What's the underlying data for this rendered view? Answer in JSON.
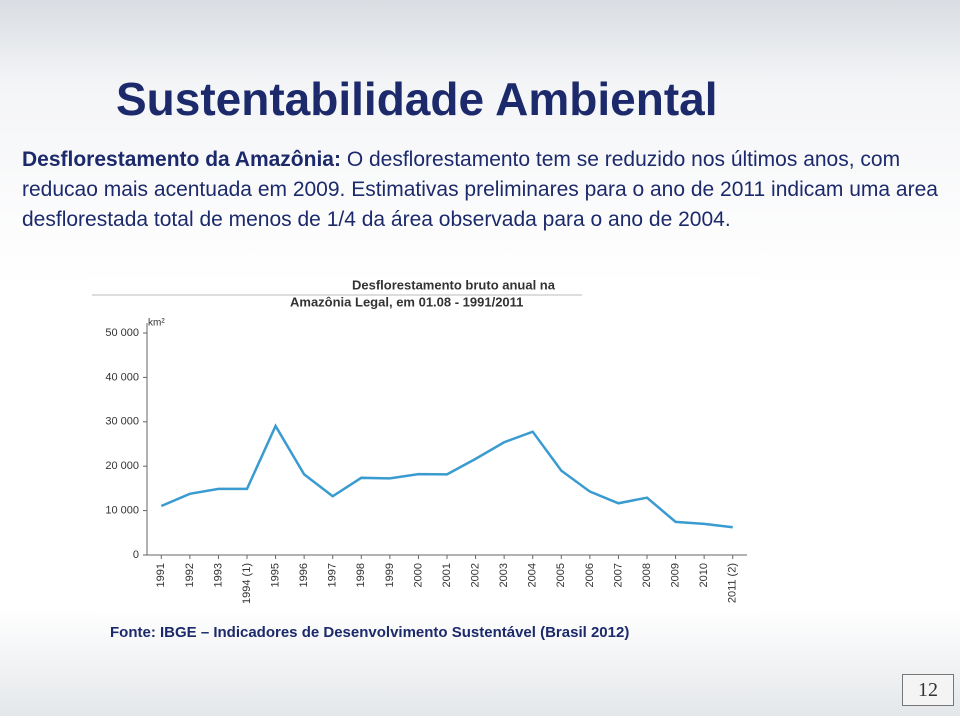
{
  "slide": {
    "title": "Sustentabilidade Ambiental",
    "lead": "Desflorestamento da Amazônia:",
    "body": "O desflorestamento tem se reduzido nos últimos anos, com reducao mais acentuada em 2009. Estimativas preliminares para o ano de 2011 indicam uma area desflorestada total de menos de 1/4 da área observada para o ano de 2004.",
    "source": "Fonte: IBGE – Indicadores de Desenvolvimento Sustentável (Brasil 2012)",
    "page": "12"
  },
  "chart_data": {
    "type": "line",
    "title": "Desflorestamento bruto anual na",
    "subtitle": "Amazônia Legal, em 01.08 - 1991/2011",
    "y_label": "km²",
    "categories": [
      "1991",
      "1992",
      "1993",
      "1994 (1)",
      "1995",
      "1996",
      "1997",
      "1998",
      "1999",
      "2000",
      "2001",
      "2002",
      "2003",
      "2004",
      "2005",
      "2006",
      "2007",
      "2008",
      "2009",
      "2010",
      "2011 (2)"
    ],
    "series": [
      {
        "name": "Desflorestamento bruto anual",
        "color": "#3a9bd0",
        "values": [
          11030,
          13786,
          14896,
          14896,
          29059,
          18161,
          13227,
          17383,
          17259,
          18226,
          18165,
          21651,
          25396,
          27772,
          19014,
          14286,
          11651,
          12911,
          7464,
          7000,
          6238
        ]
      }
    ],
    "ylim": [
      0,
      50000
    ],
    "yticks": [
      0,
      {
        "value": 10000,
        "label": "10 000"
      },
      {
        "value": 20000,
        "label": "20 000"
      },
      {
        "value": 30000,
        "label": "30 000"
      },
      {
        "value": 40000,
        "label": "40 000"
      },
      {
        "value": 50000,
        "label": "50 000"
      }
    ],
    "grid": false
  }
}
